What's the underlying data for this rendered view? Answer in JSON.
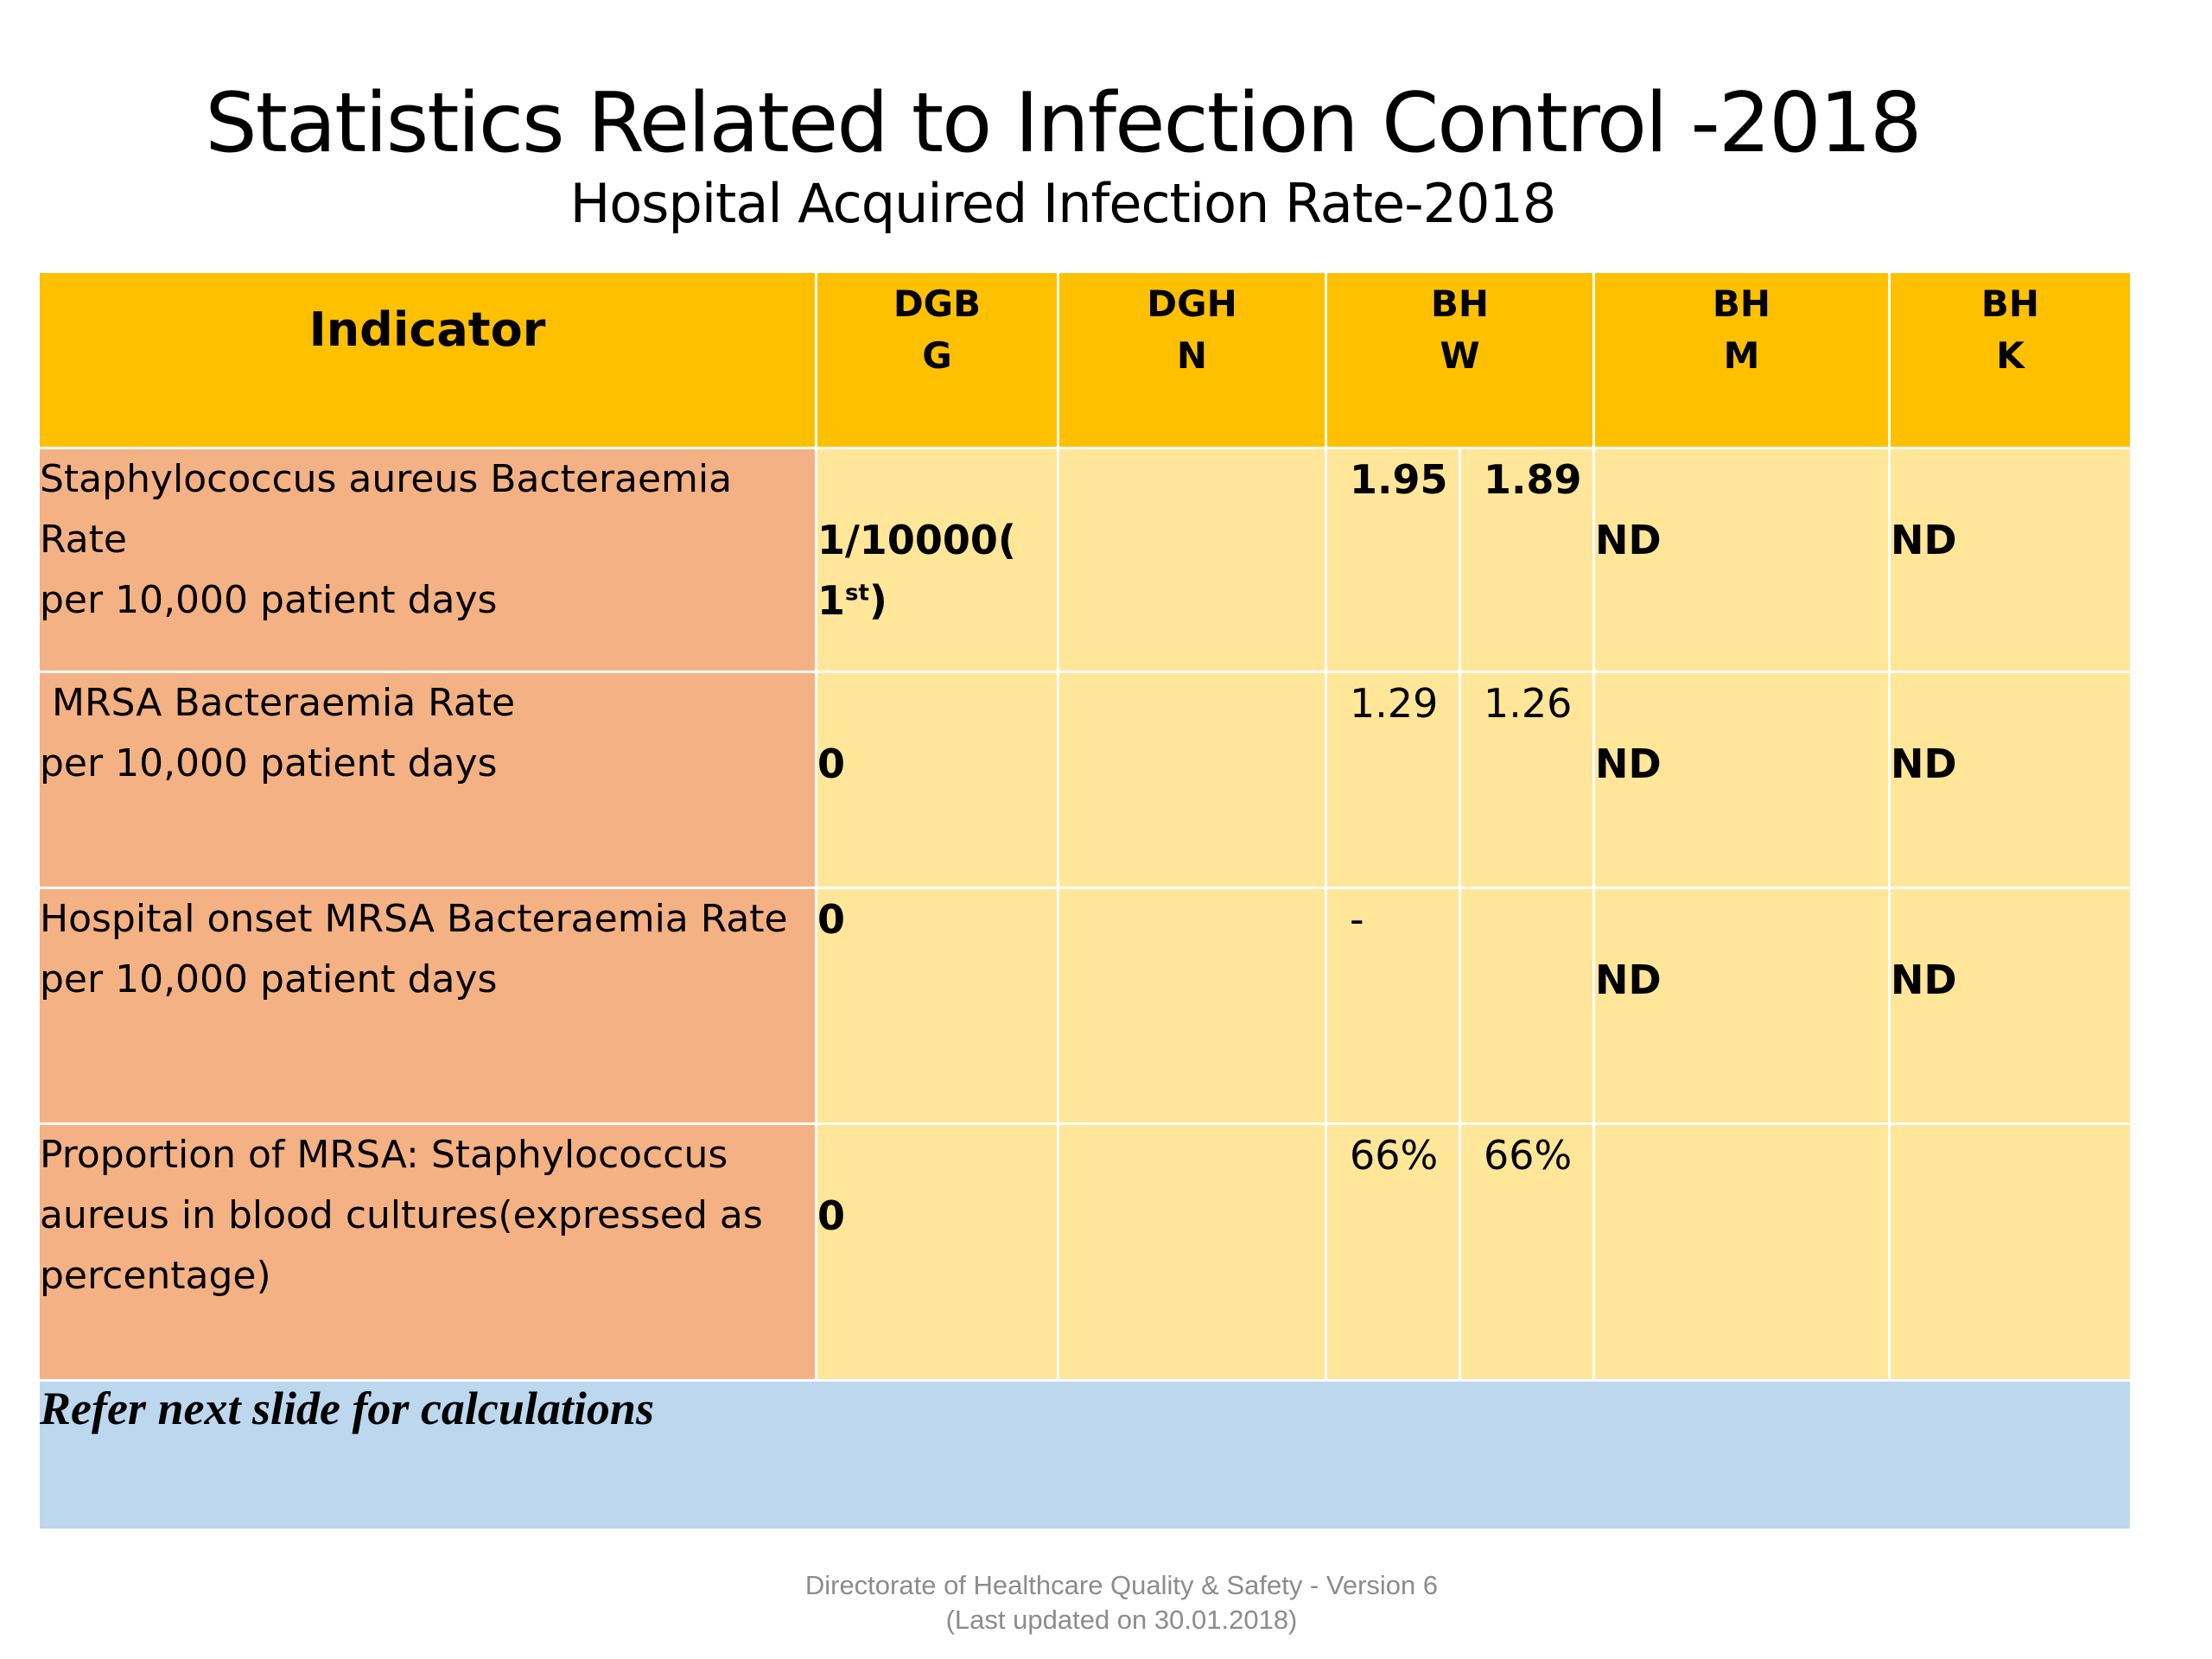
{
  "title": "Statistics Related to Infection Control -2018",
  "subtitle": "Hospital Acquired Infection Rate-2018",
  "table": {
    "headers": {
      "indicator": "Indicator",
      "dggg": [
        "DGB",
        "G"
      ],
      "dghn": [
        "DGH",
        "N"
      ],
      "bhw": [
        "BH",
        "W"
      ],
      "bhm": [
        "BH",
        "M"
      ],
      "bhk": [
        "BH",
        "K"
      ]
    },
    "rows": [
      {
        "indicator": [
          "Staphylococcus aureus Bacteraemia Rate",
          "per 10,000 patient days"
        ],
        "dgbg": "1/10000(",
        "dgbg_cont": "1",
        "dgbg_sup": "st",
        "dgbg_end": ")",
        "dghn": "",
        "bhw_a": "1.95",
        "bhw_b": "1.89",
        "bhm": "ND",
        "bhk": "ND"
      },
      {
        "indicator": [
          " MRSA Bacteraemia Rate",
          "per 10,000 patient days"
        ],
        "dgbg": "0",
        "dghn": "",
        "bhw_a": "1.29",
        "bhw_b": "1.26",
        "bhm": "ND",
        "bhk": "ND"
      },
      {
        "indicator": [
          "Hospital onset MRSA Bacteraemia Rate",
          "per 10,000 patient days"
        ],
        "dgbg": "0",
        "dghn": "",
        "bhw_a": "-",
        "bhw_b": "",
        "bhm": "ND",
        "bhk": "ND"
      },
      {
        "indicator": [
          "Proportion of MRSA: Staphylococcus",
          "aureus in blood cultures(expressed as",
          "percentage)"
        ],
        "dgbg": "0",
        "dghn": "",
        "bhw_a": "66%",
        "bhw_b": "66%",
        "bhm": "",
        "bhk": ""
      }
    ],
    "note": "Refer next slide for calculations"
  },
  "footer": {
    "line1": "Directorate of Healthcare Quality & Safety - Version 6",
    "line2": "(Last updated on 30.01.2018)"
  },
  "colors": {
    "header": "#ffc000",
    "indicator_cell": "#f4b183",
    "value_cell": "#ffe699",
    "note_row": "#bdd7ee"
  }
}
